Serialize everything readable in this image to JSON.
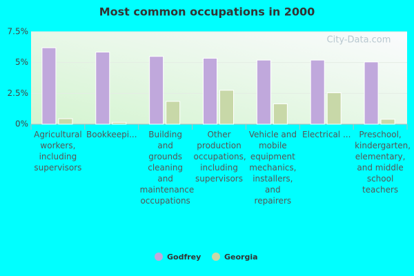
{
  "chart_data": {
    "type": "bar",
    "title": "Most common occupations in 2000",
    "watermark": "City-Data.com",
    "categories": [
      "Agricultural workers, including supervisors",
      "Bookkeepi...",
      "Building and grounds cleaning and maintenance occupations",
      "Other production occupations, including supervisors",
      "Vehicle and mobile equipment mechanics, installers, and repairers",
      "Electrical ...",
      "Preschool, kindergarten, elementary, and middle school teachers"
    ],
    "series": [
      {
        "name": "Godfrey",
        "color": "#c0a8dc",
        "values": [
          6.2,
          5.85,
          5.5,
          5.35,
          5.2,
          5.2,
          5.05
        ]
      },
      {
        "name": "Georgia",
        "color": "#c8d8a8",
        "values": [
          0.45,
          0.15,
          1.85,
          2.75,
          1.65,
          2.55,
          0.4
        ]
      }
    ],
    "ylim": [
      0,
      7.5
    ],
    "yticks": [
      {
        "value": 0,
        "label": "0%"
      },
      {
        "value": 2.5,
        "label": "2.5%"
      },
      {
        "value": 5,
        "label": "5%"
      },
      {
        "value": 7.5,
        "label": "7.5%"
      }
    ],
    "grid": true,
    "legend": "bottom"
  }
}
